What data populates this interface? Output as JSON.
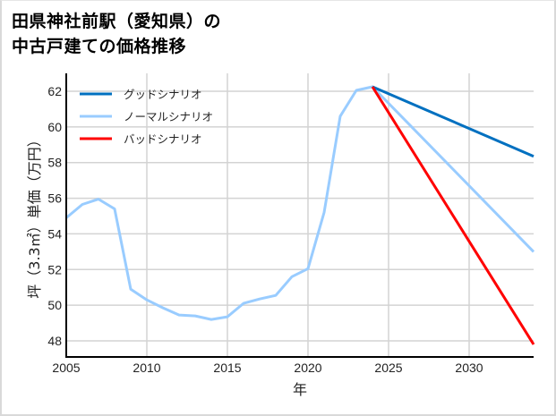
{
  "title": {
    "line1": "田県神社前駅（愛知県）の",
    "line2": "中古戸建ての価格推移"
  },
  "chart_data": {
    "type": "line",
    "title": "田県神社前駅（愛知県）の中古戸建ての価格推移",
    "xlabel": "年",
    "ylabel": "坪（3.3㎡）単価（万円）",
    "xlim": [
      2005,
      2034
    ],
    "ylim": [
      47.1,
      63.1
    ],
    "x_ticks": [
      "2005",
      "2010",
      "2015",
      "2020",
      "2025",
      "2030"
    ],
    "y_ticks": [
      "48",
      "50",
      "52",
      "54",
      "56",
      "58",
      "60",
      "62"
    ],
    "grid": true,
    "legend_position": "upper left",
    "series": [
      {
        "name": "グッドシナリオ",
        "color": "#0070c0",
        "x": [
          2024,
          2034
        ],
        "values": [
          62.25,
          58.35
        ]
      },
      {
        "name": "ノーマルシナリオ",
        "color": "#99ccff",
        "x": [
          2005,
          2006,
          2007,
          2008,
          2009,
          2010,
          2011,
          2012,
          2013,
          2014,
          2015,
          2016,
          2017,
          2018,
          2019,
          2020,
          2021,
          2022,
          2023,
          2024,
          2034
        ],
        "values": [
          54.9,
          55.65,
          55.95,
          55.4,
          50.9,
          50.3,
          49.85,
          49.45,
          49.4,
          49.2,
          49.35,
          50.1,
          50.35,
          50.55,
          51.6,
          52.05,
          55.2,
          60.6,
          62.05,
          62.25,
          53.0
        ]
      },
      {
        "name": "バッドシナリオ",
        "color": "#ff0000",
        "x": [
          2024,
          2034
        ],
        "values": [
          62.25,
          47.8
        ]
      }
    ]
  }
}
